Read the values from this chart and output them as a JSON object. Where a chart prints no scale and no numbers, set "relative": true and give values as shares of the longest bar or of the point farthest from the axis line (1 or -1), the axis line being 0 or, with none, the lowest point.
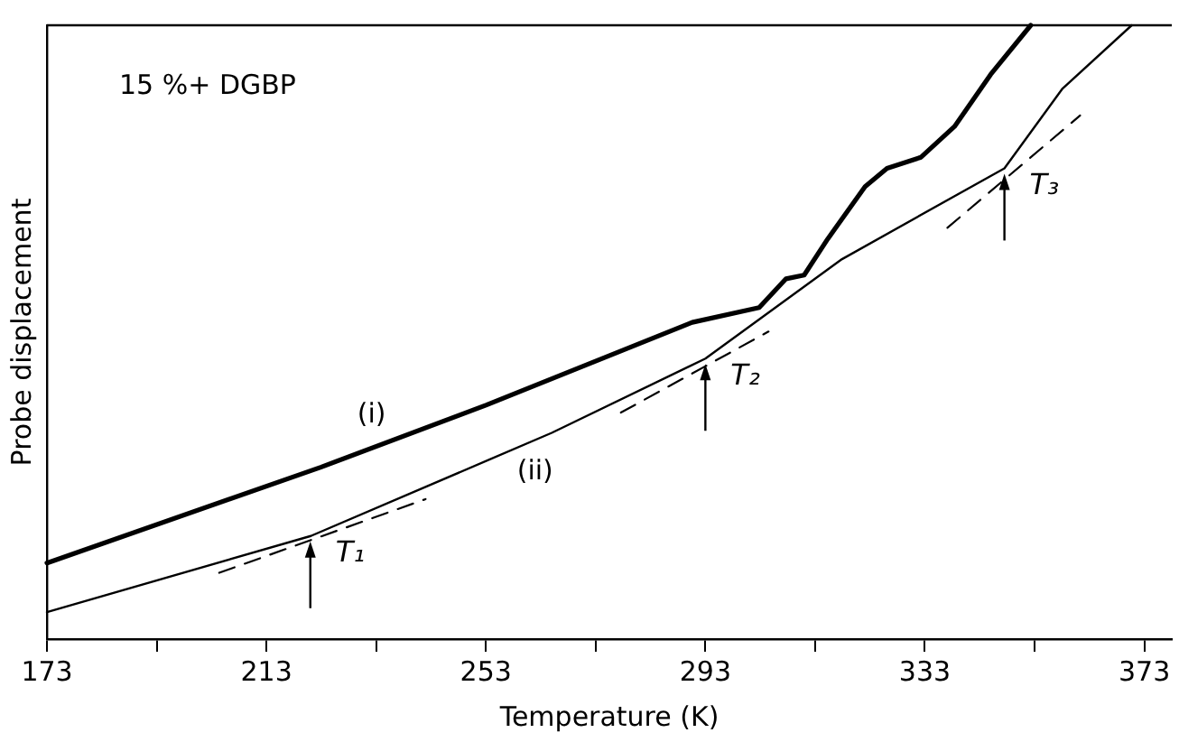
{
  "chart_data": {
    "type": "line",
    "xlabel": "Temperature (K)",
    "ylabel": "Probe displacement",
    "relative": true,
    "legend": false,
    "grid": false,
    "marker": "none",
    "xlim": [
      173,
      378
    ],
    "xticks": [
      173,
      {
        "value": 193,
        "label": null
      },
      213,
      {
        "value": 233,
        "label": null
      },
      253,
      {
        "value": 273,
        "label": null
      },
      293,
      {
        "value": 313,
        "label": null
      },
      333,
      {
        "value": 353,
        "label": null
      },
      373
    ],
    "series": [
      {
        "name": "(i)",
        "color": "#000000",
        "x": [
          173,
          222.9,
          253,
          290.6,
          302.8,
          307.7,
          311,
          315.3,
          322.1,
          326.1,
          332.3,
          338.4,
          345,
          352.3
        ],
        "values": [
          0.124,
          0.28,
          0.381,
          0.516,
          0.54,
          0.587,
          0.593,
          0.652,
          0.737,
          0.767,
          0.785,
          0.835,
          0.92,
          1
        ]
      },
      {
        "name": "(ii)",
        "color": "#000000",
        "x": [
          173,
          221.1,
          265,
          293,
          317.9,
          347.5,
          358.1,
          370.7
        ],
        "values": [
          0.044,
          0.168,
          0.336,
          0.457,
          0.619,
          0.767,
          0.897,
          1
        ]
      },
      {
        "color": "#000000",
        "line_style": "dashed",
        "x": [
          204.4,
          242
        ],
        "values": [
          0.108,
          0.228
        ]
      },
      {
        "color": "#000000",
        "line_style": "dashed",
        "x": [
          277.6,
          304.5
        ],
        "values": [
          0.369,
          0.501
        ]
      },
      {
        "color": "#000000",
        "line_style": "dashed",
        "x": [
          337.1,
          361.3
        ],
        "values": [
          0.67,
          0.853
        ]
      }
    ],
    "annotations": [
      "15 %+ DGBP",
      {
        "text": "T₁",
        "x": 221,
        "y": 0.168
      },
      {
        "text": "T₂",
        "x": 293,
        "y": 0.457
      },
      {
        "text": "T₃",
        "x": 347.5,
        "y": 0.767
      }
    ]
  }
}
